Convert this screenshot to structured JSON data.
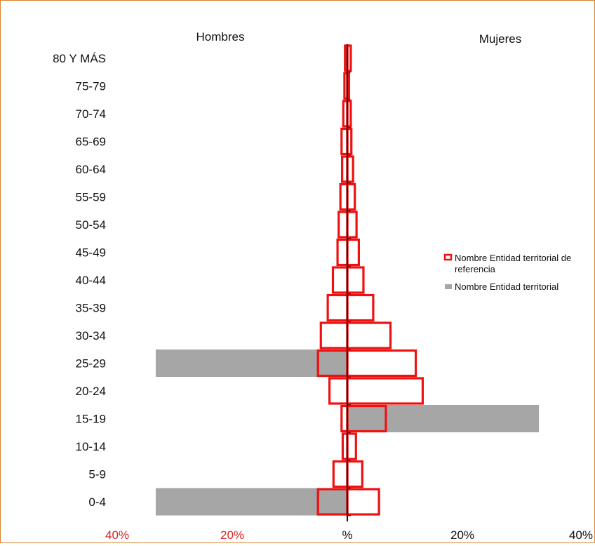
{
  "chart_data": {
    "type": "bar",
    "orientation": "horizontal",
    "chart_subtype": "population-pyramid",
    "left_header": "Hombres",
    "right_header": "Mujeres",
    "categories": [
      "80 Y MÁS",
      "75-79",
      "70-74",
      "65-69",
      "60-64",
      "55-59",
      "50-54",
      "45-49",
      "40-44",
      "35-39",
      "30-34",
      "25-29",
      "20-24",
      "15-19",
      "10-14",
      "5-9",
      "0-4"
    ],
    "xlim": [
      -40,
      40
    ],
    "ticks": [
      {
        "value": -40,
        "label": "40%"
      },
      {
        "value": -20,
        "label": "20%"
      },
      {
        "value": 0,
        "label": "%"
      },
      {
        "value": 20,
        "label": "20%"
      },
      {
        "value": 40,
        "label": "40%"
      }
    ],
    "series": [
      {
        "name": "Nombre Entidad territorial",
        "style": "filled",
        "color": "#a6a6a6",
        "hombres": [
          0,
          0,
          0,
          0,
          0,
          0,
          0,
          0,
          0,
          0,
          0,
          33.3,
          0,
          0,
          0,
          0,
          33.3
        ],
        "mujeres": [
          0,
          0,
          0,
          0,
          0,
          0,
          0,
          0,
          0,
          0,
          0,
          0,
          0,
          33.3,
          0,
          0,
          0
        ]
      },
      {
        "name": "Nombre Entidad territorial de referencia",
        "style": "outline",
        "color": "#ee1111",
        "hombres": [
          0.4,
          0.5,
          0.7,
          1.0,
          0.9,
          1.2,
          1.5,
          1.7,
          2.5,
          3.4,
          4.6,
          5.1,
          3.1,
          1.0,
          0.8,
          2.4,
          5.1
        ],
        "mujeres": [
          0.6,
          0.3,
          0.6,
          0.7,
          1.0,
          1.3,
          1.6,
          2.0,
          2.8,
          4.5,
          7.5,
          11.9,
          13.1,
          6.7,
          1.5,
          2.6,
          5.5
        ]
      }
    ],
    "legend_position": "right",
    "colors": {
      "tick_negative": "#dd2222",
      "tick_positive": "#111111",
      "axis": "#5a0000",
      "frame": "#d9822b"
    }
  }
}
